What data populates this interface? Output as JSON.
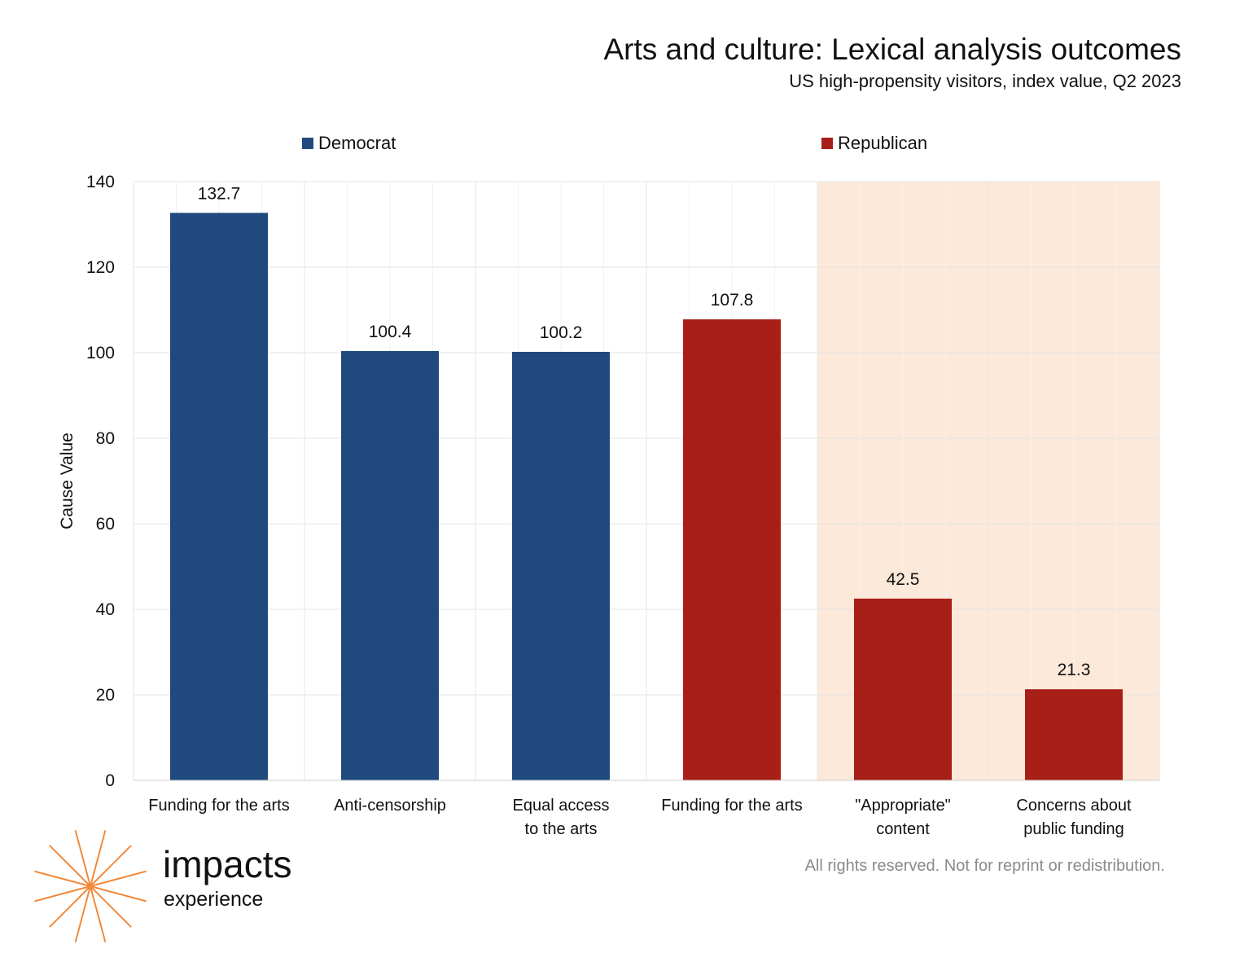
{
  "header": {
    "title": "Arts and culture: Lexical analysis outcomes",
    "subtitle": "US high-propensity visitors, index value, Q2 2023"
  },
  "legend": [
    {
      "label": "Democrat",
      "color": "#204a7e"
    },
    {
      "label": "Republican",
      "color": "#a81f18"
    }
  ],
  "chart_data": {
    "type": "bar",
    "categories": [
      [
        "Funding for the arts"
      ],
      [
        "Anti-censorship"
      ],
      [
        "Equal access",
        "to the arts"
      ],
      [
        "Funding for the arts"
      ],
      [
        "\"Appropriate\"",
        "content"
      ],
      [
        "Concerns about",
        "public funding"
      ]
    ],
    "values": [
      132.7,
      100.4,
      100.2,
      107.8,
      42.5,
      21.3
    ],
    "value_labels": [
      "132.7",
      "100.4",
      "100.2",
      "107.8",
      "42.5",
      "21.3"
    ],
    "groups": [
      "Democrat",
      "Democrat",
      "Democrat",
      "Republican",
      "Republican",
      "Republican"
    ],
    "highlighted_categories": [
      4,
      5
    ],
    "highlight_color": "#fce9da",
    "ylabel": "Cause Value",
    "xlabel": "",
    "ylim": [
      0,
      140
    ],
    "yticks": [
      0,
      20,
      40,
      60,
      80,
      100,
      120,
      140
    ],
    "grid": true
  },
  "footer": {
    "rights": "All rights reserved. Not for reprint or redistribution."
  },
  "logo": {
    "word": "impacts",
    "sub": "experience",
    "color": "#f08a3c"
  }
}
